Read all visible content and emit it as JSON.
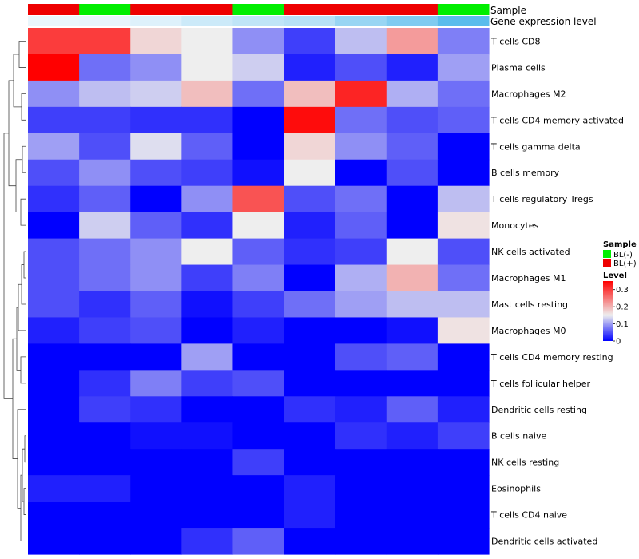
{
  "chart_data": {
    "type": "heatmap",
    "rows": [
      "T cells CD8",
      "Plasma cells",
      "Macrophages M2",
      "T cells CD4 memory activated",
      "T cells gamma delta",
      "B cells memory",
      "T cells regulatory  Tregs",
      "Monocytes",
      "NK cells activated",
      "Macrophages M1",
      "Mast cells resting",
      "Macrophages M0",
      "T cells CD4 memory resting",
      "T cells follicular helper",
      "Dendritic cells resting",
      "B cells naive",
      "NK cells resting",
      "Eosinophils",
      "T cells CD4 naive",
      "Dendritic cells activated"
    ],
    "values": [
      [
        0.3,
        0.3,
        0.17,
        0.15,
        0.09,
        0.04,
        0.12,
        0.22,
        0.08
      ],
      [
        0.36,
        0.07,
        0.09,
        0.15,
        0.13,
        0.02,
        0.05,
        0.02,
        0.1
      ],
      [
        0.09,
        0.12,
        0.13,
        0.19,
        0.07,
        0.19,
        0.32,
        0.11,
        0.07
      ],
      [
        0.04,
        0.04,
        0.03,
        0.03,
        0.0,
        0.34,
        0.07,
        0.05,
        0.06
      ],
      [
        0.1,
        0.05,
        0.14,
        0.06,
        0.0,
        0.17,
        0.09,
        0.06,
        0.0
      ],
      [
        0.05,
        0.09,
        0.05,
        0.04,
        0.01,
        0.15,
        0.0,
        0.05,
        0.0
      ],
      [
        0.03,
        0.06,
        0.0,
        0.09,
        0.28,
        0.05,
        0.07,
        0.0,
        0.12
      ],
      [
        0.0,
        0.13,
        0.06,
        0.03,
        0.15,
        0.02,
        0.06,
        0.0,
        0.16
      ],
      [
        0.05,
        0.07,
        0.09,
        0.15,
        0.06,
        0.03,
        0.04,
        0.15,
        0.05
      ],
      [
        0.05,
        0.07,
        0.09,
        0.04,
        0.08,
        0.0,
        0.11,
        0.2,
        0.07
      ],
      [
        0.05,
        0.03,
        0.06,
        0.01,
        0.04,
        0.07,
        0.1,
        0.12,
        0.12
      ],
      [
        0.02,
        0.04,
        0.05,
        0.0,
        0.02,
        0.0,
        0.0,
        0.01,
        0.16
      ],
      [
        0.0,
        0.0,
        0.0,
        0.1,
        0.0,
        0.0,
        0.05,
        0.06,
        0.0
      ],
      [
        0.0,
        0.03,
        0.08,
        0.04,
        0.05,
        0.0,
        0.0,
        0.0,
        0.0
      ],
      [
        0.0,
        0.04,
        0.03,
        0.0,
        0.0,
        0.03,
        0.02,
        0.06,
        0.02
      ],
      [
        0.0,
        0.0,
        0.01,
        0.01,
        0.0,
        0.0,
        0.03,
        0.02,
        0.04
      ],
      [
        0.0,
        0.0,
        0.0,
        0.0,
        0.04,
        0.0,
        0.0,
        0.0,
        0.0
      ],
      [
        0.02,
        0.02,
        0.0,
        0.0,
        0.0,
        0.02,
        0.0,
        0.0,
        0.0
      ],
      [
        0.0,
        0.0,
        0.0,
        0.0,
        0.0,
        0.02,
        0.0,
        0.0,
        0.0
      ],
      [
        0.0,
        0.0,
        0.0,
        0.03,
        0.06,
        0.0,
        0.0,
        0.0,
        0.0
      ]
    ],
    "sample_groups": [
      "BL(+)",
      "BL(-)",
      "BL(+)",
      "BL(+)",
      "BL(-)",
      "BL(+)",
      "BL(+)",
      "BL(+)",
      "BL(-)"
    ],
    "gene_expression_levels": [
      0.5,
      0.55,
      0.9,
      1.5,
      1.9,
      2.2,
      3.2,
      4.0,
      5.2
    ],
    "annotation_labels": {
      "sample": "Sample",
      "gene_expression": "Gene expression level"
    },
    "legend": {
      "sample_title": "Sample",
      "sample_entries": [
        {
          "label": "BL(-)",
          "color": "#00ee00"
        },
        {
          "label": "BL(+)",
          "color": "#ee0000"
        }
      ],
      "level_title": "Level",
      "level_ticks": [
        "0.3",
        "0.2",
        "0.1",
        "0"
      ],
      "level_tick_values": [
        0.3,
        0.2,
        0.1,
        0
      ],
      "placement": "right"
    },
    "color_scale": {
      "low": "#0000ff",
      "mid": "#eeeeee",
      "high": "#ff0000",
      "min": 0,
      "mid_value": 0.15,
      "max": 0.35
    },
    "gene_expression_colors": {
      "low": "#eaf6fc",
      "high": "#5bbcec"
    },
    "row_dendrogram": true,
    "column_clustering": false
  }
}
